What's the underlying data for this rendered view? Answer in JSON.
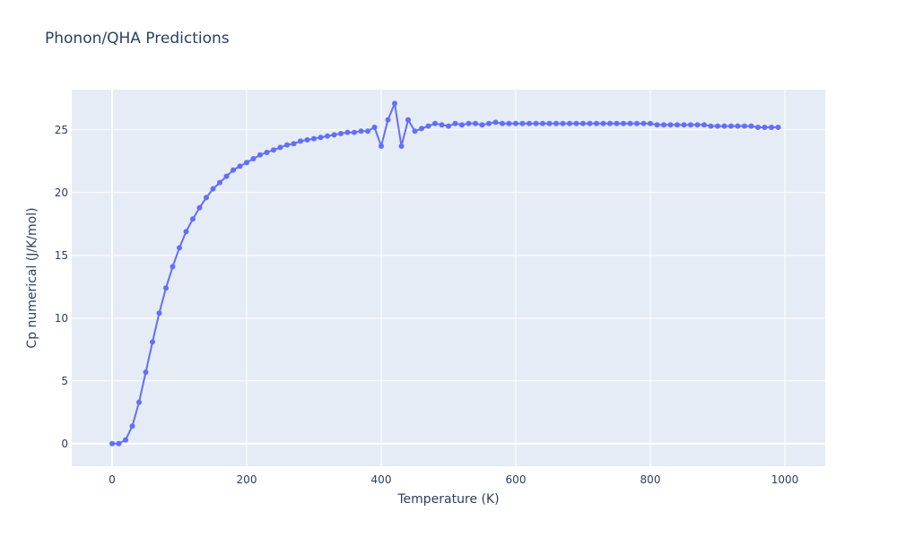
{
  "chart_data": {
    "type": "line",
    "title": "Phonon/QHA Predictions",
    "xlabel": "Temperature (K)",
    "ylabel": "Cp numerical (J/K/mol)",
    "xlim": [
      -60,
      1060
    ],
    "ylim": [
      -1.8,
      28.2
    ],
    "xticks": [
      0,
      200,
      400,
      600,
      800,
      1000
    ],
    "yticks": [
      0,
      5,
      10,
      15,
      20,
      25
    ],
    "grid": true,
    "legend": "none",
    "colors": {
      "series": "#636efa",
      "plot_bg": "#e5ecf6",
      "grid": "#ffffff",
      "text": "#2a3f5f"
    },
    "series": [
      {
        "x": [
          0,
          10,
          20,
          30,
          40,
          50,
          60,
          70,
          80,
          90,
          100,
          110,
          120,
          130,
          140,
          150,
          160,
          170,
          180,
          190,
          200,
          210,
          220,
          230,
          240,
          250,
          260,
          270,
          280,
          290,
          300,
          310,
          320,
          330,
          340,
          350,
          360,
          370,
          380,
          390,
          400,
          410,
          420,
          430,
          440,
          450,
          460,
          470,
          480,
          490,
          500,
          510,
          520,
          530,
          540,
          550,
          560,
          570,
          580,
          590,
          600,
          610,
          620,
          630,
          640,
          650,
          660,
          670,
          680,
          690,
          700,
          710,
          720,
          730,
          740,
          750,
          760,
          770,
          780,
          790,
          800,
          810,
          820,
          830,
          840,
          850,
          860,
          870,
          880,
          890,
          900,
          910,
          920,
          930,
          940,
          950,
          960,
          970,
          980,
          990
        ],
        "values": [
          0,
          0,
          0.3,
          1.4,
          3.3,
          5.7,
          8.1,
          10.4,
          12.4,
          14.1,
          15.6,
          16.9,
          17.9,
          18.8,
          19.6,
          20.3,
          20.8,
          21.3,
          21.8,
          22.1,
          22.4,
          22.7,
          23.0,
          23.2,
          23.4,
          23.6,
          23.8,
          23.9,
          24.1,
          24.2,
          24.3,
          24.4,
          24.5,
          24.6,
          24.7,
          24.8,
          24.8,
          24.9,
          24.9,
          25.2,
          23.7,
          25.8,
          27.1,
          23.7,
          25.8,
          24.9,
          25.1,
          25.3,
          25.5,
          25.4,
          25.3,
          25.5,
          25.4,
          25.5,
          25.5,
          25.4,
          25.5,
          25.6,
          25.5,
          25.5,
          25.5,
          25.5,
          25.5,
          25.5,
          25.5,
          25.5,
          25.5,
          25.5,
          25.5,
          25.5,
          25.5,
          25.5,
          25.5,
          25.5,
          25.5,
          25.5,
          25.5,
          25.5,
          25.5,
          25.5,
          25.5,
          25.4,
          25.4,
          25.4,
          25.4,
          25.4,
          25.4,
          25.4,
          25.4,
          25.3,
          25.3,
          25.3,
          25.3,
          25.3,
          25.3,
          25.3,
          25.2,
          25.2,
          25.2,
          25.2
        ]
      }
    ]
  }
}
